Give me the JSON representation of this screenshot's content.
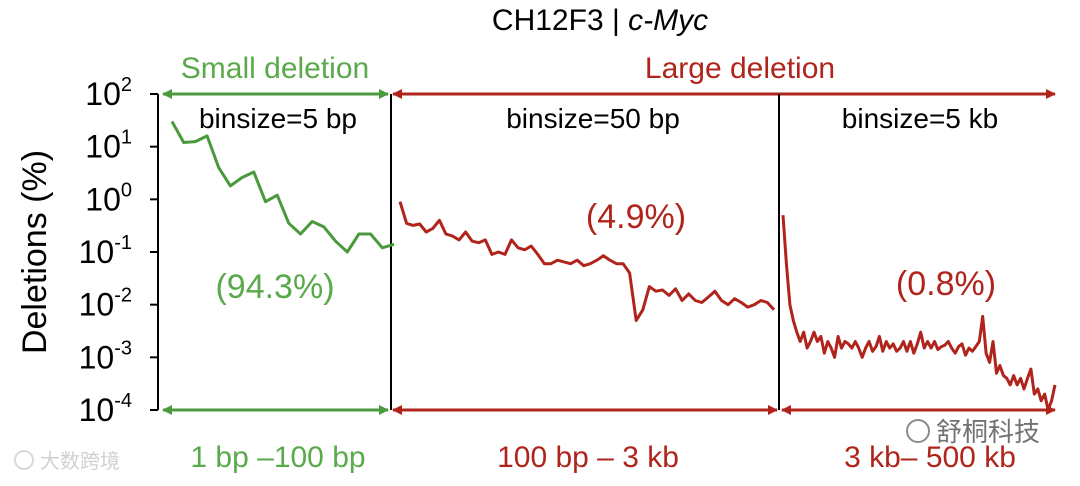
{
  "colors": {
    "small": "#4a9a3c",
    "small_text": "#5aaa4c",
    "large": "#b0241c",
    "axis": "#000000"
  },
  "chart_data": {
    "type": "line",
    "title_main": "CH12F3 | ",
    "title_gene": "c-Myc",
    "ylabel": "Deletions (%)",
    "y_scale": "log",
    "ylim": [
      0.0001,
      100
    ],
    "y_tick_labels": [
      {
        "base": "10",
        "exp": "2"
      },
      {
        "base": "10",
        "exp": "1"
      },
      {
        "base": "10",
        "exp": "0"
      },
      {
        "base": "10",
        "exp": "-1"
      },
      {
        "base": "10",
        "exp": "-2"
      },
      {
        "base": "10",
        "exp": "-3"
      },
      {
        "base": "10",
        "exp": "-4"
      }
    ],
    "group_labels": {
      "small": "Small deletion",
      "large": "Large deletion"
    },
    "panels": [
      {
        "key": "small",
        "binsize_label": "binsize=5 bp",
        "percent_label": "(94.3%)",
        "range_label": "1 bp –100 bp",
        "series": {
          "name": "",
          "x": [
            0,
            1,
            2,
            3,
            4,
            5,
            6,
            7,
            8,
            9,
            10,
            11,
            12,
            13,
            14,
            15,
            16,
            17,
            18,
            19
          ],
          "values": [
            30,
            12,
            12.5,
            16,
            4,
            1.8,
            2.6,
            3.3,
            0.9,
            1.2,
            0.35,
            0.22,
            0.38,
            0.3,
            0.16,
            0.1,
            0.22,
            0.22,
            0.12,
            0.14
          ]
        }
      },
      {
        "key": "large",
        "binsize_label": "binsize=50 bp",
        "percent_label": "(4.9%)",
        "range_label": "100 bp – 3 kb",
        "series": {
          "name": "",
          "x": [
            0,
            1,
            2,
            3,
            4,
            5,
            6,
            7,
            8,
            9,
            10,
            11,
            12,
            13,
            14,
            15,
            16,
            17,
            18,
            19,
            20,
            21,
            22,
            23,
            24,
            25,
            26,
            27,
            28,
            29,
            30,
            31,
            32,
            33,
            34,
            35,
            36,
            37,
            38,
            39,
            40,
            41,
            42,
            43,
            44,
            45,
            46,
            47,
            48,
            49,
            50,
            51,
            52,
            53,
            54,
            55,
            56,
            57
          ],
          "values": [
            0.9,
            0.35,
            0.32,
            0.34,
            0.24,
            0.28,
            0.4,
            0.22,
            0.2,
            0.17,
            0.24,
            0.16,
            0.15,
            0.17,
            0.09,
            0.1,
            0.09,
            0.17,
            0.12,
            0.11,
            0.13,
            0.09,
            0.06,
            0.06,
            0.07,
            0.065,
            0.06,
            0.07,
            0.055,
            0.06,
            0.07,
            0.085,
            0.07,
            0.06,
            0.06,
            0.04,
            0.005,
            0.008,
            0.022,
            0.018,
            0.019,
            0.015,
            0.02,
            0.012,
            0.016,
            0.012,
            0.011,
            0.014,
            0.018,
            0.012,
            0.01,
            0.013,
            0.011,
            0.009,
            0.01,
            0.012,
            0.011,
            0.008
          ]
        }
      },
      {
        "key": "large",
        "binsize_label": "binsize=5 kb",
        "percent_label": "(0.8%)",
        "range_label": "3 kb– 500 kb",
        "series": {
          "name": "",
          "x": [
            0,
            1,
            2,
            3,
            4,
            5,
            6,
            7,
            8,
            9,
            10,
            11,
            12,
            13,
            14,
            15,
            16,
            17,
            18,
            19,
            20,
            21,
            22,
            23,
            24,
            25,
            26,
            27,
            28,
            29,
            30,
            31,
            32,
            33,
            34,
            35,
            36,
            37,
            38,
            39,
            40,
            41,
            42,
            43,
            44,
            45,
            46,
            47,
            48,
            49,
            50,
            51,
            52,
            53,
            54,
            55,
            56,
            57,
            58,
            59,
            60,
            61,
            62,
            63,
            64,
            65,
            66,
            67,
            68,
            69,
            70,
            71,
            72,
            73,
            74,
            75,
            76,
            77,
            78,
            79
          ],
          "values": [
            0.5,
            0.06,
            0.01,
            0.005,
            0.003,
            0.002,
            0.003,
            0.0015,
            0.002,
            0.003,
            0.002,
            0.0025,
            0.0012,
            0.002,
            0.0015,
            0.001,
            0.0025,
            0.0015,
            0.002,
            0.0018,
            0.0015,
            0.002,
            0.0015,
            0.001,
            0.0015,
            0.002,
            0.0013,
            0.0016,
            0.0025,
            0.0013,
            0.002,
            0.0015,
            0.0018,
            0.0013,
            0.0015,
            0.002,
            0.0013,
            0.002,
            0.0012,
            0.0018,
            0.003,
            0.0015,
            0.002,
            0.0015,
            0.002,
            0.0014,
            0.0016,
            0.0017,
            0.002,
            0.0015,
            0.0012,
            0.0016,
            0.0018,
            0.0011,
            0.0015,
            0.0013,
            0.0016,
            0.002,
            0.006,
            0.0012,
            0.0008,
            0.002,
            0.0005,
            0.0007,
            0.00045,
            0.0004,
            0.0003,
            0.00045,
            0.0003,
            0.0004,
            0.00025,
            0.0004,
            0.0006,
            0.0002,
            0.00025,
            0.00015,
            0.0002,
            0.0001,
            0.00015,
            0.0003
          ]
        }
      }
    ]
  },
  "watermarks": {
    "left": "大数跨境",
    "right": "舒桐科技"
  }
}
